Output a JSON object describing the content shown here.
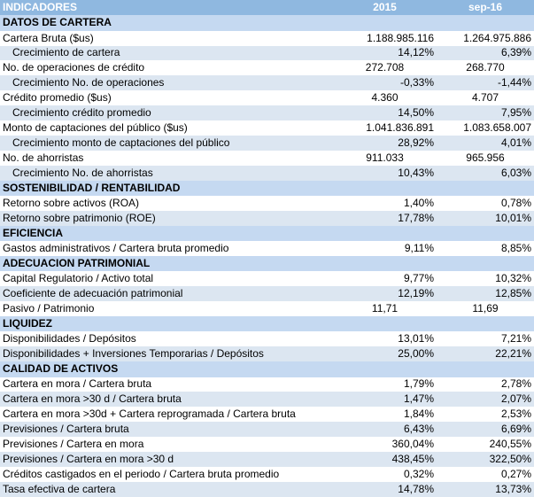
{
  "header": {
    "label": "INDICADORES",
    "col1": "2015",
    "col2": "sep-16"
  },
  "sections": [
    {
      "title": "DATOS DE CARTERA",
      "rows": [
        {
          "label": "Cartera Bruta ($us)",
          "v1": "1.188.985.116",
          "v2": "1.264.975.886",
          "indent": false,
          "align": "right"
        },
        {
          "label": "Crecimiento de cartera",
          "v1": "14,12%",
          "v2": "6,39%",
          "indent": true,
          "align": "right"
        },
        {
          "label": "No. de operaciones de crédito",
          "v1": "272.708",
          "v2": "268.770",
          "indent": false,
          "align": "center"
        },
        {
          "label": "Crecimiento No. de operaciones",
          "v1": "-0,33%",
          "v2": "-1,44%",
          "indent": true,
          "align": "right"
        },
        {
          "label": "Crédito promedio ($us)",
          "v1": "4.360",
          "v2": "4.707",
          "indent": false,
          "align": "center"
        },
        {
          "label": "Crecimiento crédito promedio",
          "v1": "14,50%",
          "v2": "7,95%",
          "indent": true,
          "align": "right"
        },
        {
          "label": "Monto de captaciones del público ($us)",
          "v1": "1.041.836.891",
          "v2": "1.083.658.007",
          "indent": false,
          "align": "right"
        },
        {
          "label": "Crecimiento monto de captaciones del público",
          "v1": "28,92%",
          "v2": "4,01%",
          "indent": true,
          "align": "right"
        },
        {
          "label": "No. de ahorristas",
          "v1": "911.033",
          "v2": "965.956",
          "indent": false,
          "align": "center"
        },
        {
          "label": "Crecimiento No. de ahorristas",
          "v1": "10,43%",
          "v2": "6,03%",
          "indent": true,
          "align": "right"
        }
      ]
    },
    {
      "title": "SOSTENIBILIDAD / RENTABILIDAD",
      "rows": [
        {
          "label": "Retorno sobre activos (ROA)",
          "v1": "1,40%",
          "v2": "0,78%",
          "indent": false,
          "align": "right"
        },
        {
          "label": "Retorno sobre patrimonio (ROE)",
          "v1": "17,78%",
          "v2": "10,01%",
          "indent": false,
          "align": "right"
        }
      ]
    },
    {
      "title": "EFICIENCIA",
      "rows": [
        {
          "label": "Gastos administrativos / Cartera bruta promedio",
          "v1": "9,11%",
          "v2": "8,85%",
          "indent": false,
          "align": "right"
        }
      ]
    },
    {
      "title": "ADECUACION PATRIMONIAL",
      "rows": [
        {
          "label": "Capital Regulatorio / Activo total",
          "v1": "9,77%",
          "v2": "10,32%",
          "indent": false,
          "align": "right"
        },
        {
          "label": "Coeficiente de adecuación patrimonial",
          "v1": "12,19%",
          "v2": "12,85%",
          "indent": false,
          "align": "right"
        },
        {
          "label": "Pasivo / Patrimonio",
          "v1": "11,71",
          "v2": "11,69",
          "indent": false,
          "align": "center"
        }
      ]
    },
    {
      "title": "LIQUIDEZ",
      "rows": [
        {
          "label": "Disponibilidades / Depósitos",
          "v1": "13,01%",
          "v2": "7,21%",
          "indent": false,
          "align": "right"
        },
        {
          "label": "Disponibilidades + Inversiones Temporarias / Depósitos",
          "v1": "25,00%",
          "v2": "22,21%",
          "indent": false,
          "align": "right"
        }
      ]
    },
    {
      "title": "CALIDAD DE ACTIVOS",
      "rows": [
        {
          "label": "Cartera en mora / Cartera bruta",
          "v1": "1,79%",
          "v2": "2,78%",
          "indent": false,
          "align": "right"
        },
        {
          "label": "Cartera en mora >30 d / Cartera bruta",
          "v1": "1,47%",
          "v2": "2,07%",
          "indent": false,
          "align": "right"
        },
        {
          "label": "Cartera en mora >30d + Cartera reprogramada / Cartera bruta",
          "v1": "1,84%",
          "v2": "2,53%",
          "indent": false,
          "align": "right"
        },
        {
          "label": "Previsiones / Cartera bruta",
          "v1": "6,43%",
          "v2": "6,69%",
          "indent": false,
          "align": "right"
        },
        {
          "label": "Previsiones / Cartera en mora",
          "v1": "360,04%",
          "v2": "240,55%",
          "indent": false,
          "align": "right"
        },
        {
          "label": "Previsiones / Cartera en mora >30 d",
          "v1": "438,45%",
          "v2": "322,50%",
          "indent": false,
          "align": "right"
        },
        {
          "label": "Créditos castigados en el periodo / Cartera bruta promedio",
          "v1": "0,32%",
          "v2": "0,27%",
          "indent": false,
          "align": "right"
        },
        {
          "label": "Tasa efectiva de cartera",
          "v1": "14,78%",
          "v2": "13,73%",
          "indent": false,
          "align": "right"
        }
      ]
    }
  ]
}
